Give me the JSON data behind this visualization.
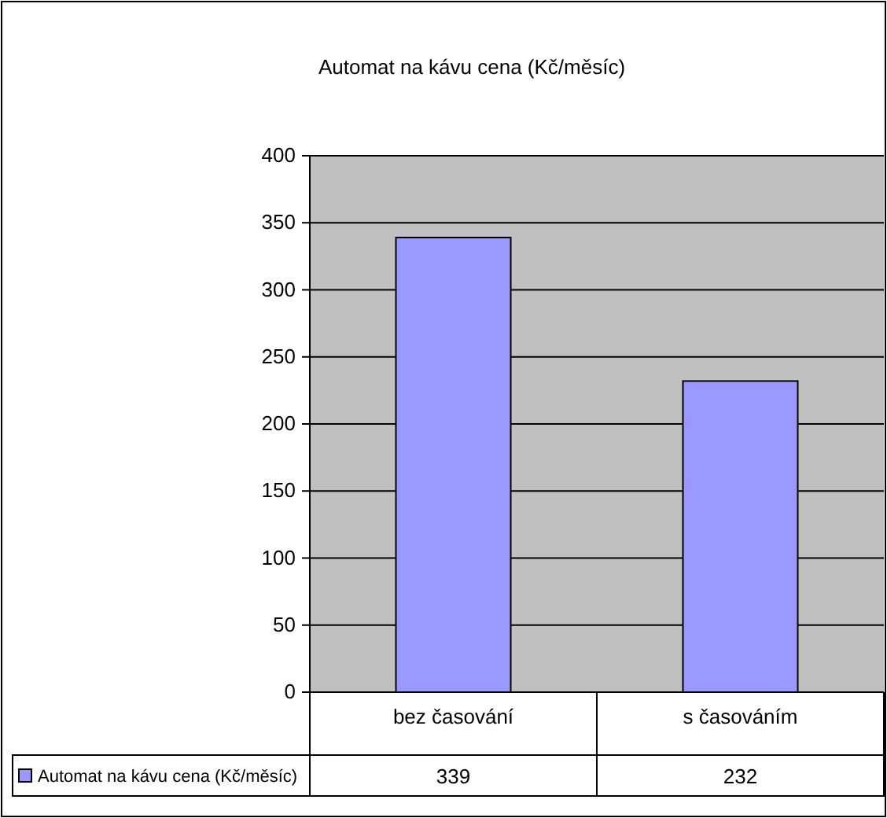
{
  "chart_data": {
    "type": "bar",
    "title": "Automat na kávu cena (Kč/měsíc)",
    "categories": [
      "bez časování",
      "s časováním"
    ],
    "series": [
      {
        "name": "Automat na kávu cena (Kč/měsíc)",
        "color": "#9999ff",
        "values": [
          339,
          232
        ]
      }
    ],
    "ylim": [
      0,
      400
    ],
    "yticks": [
      0,
      50,
      100,
      150,
      200,
      250,
      300,
      350,
      400
    ],
    "grid": "y",
    "data_labels": true,
    "legend": "bottom"
  }
}
